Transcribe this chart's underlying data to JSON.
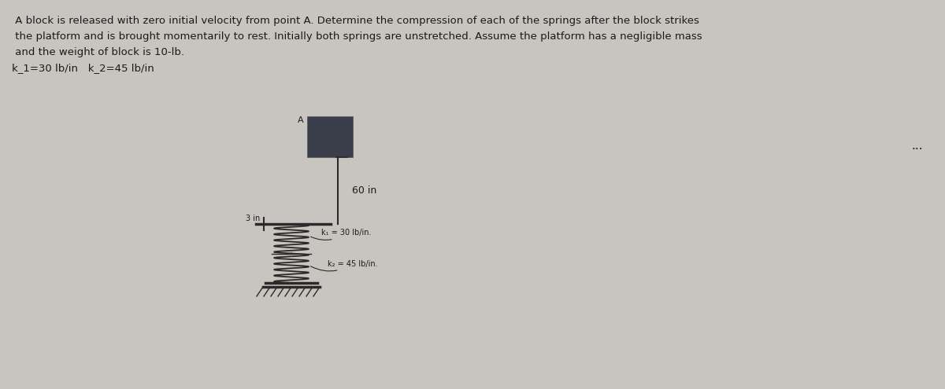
{
  "background_color": "#c8c4c0",
  "text_color": "#1a1a1a",
  "title_line1": " A block is released with zero initial velocity from point A. Determine the compression of each of the springs after the block strikes",
  "title_line2": " the platform and is brought momentarily to rest. Initially both springs are unstretched. Assume the platform has a negligible mass",
  "title_line3": " and the weight of block is 10-lb.",
  "subtitle_text": "k_1=30 lb/in   k_2=45 lb/in",
  "dots_text": "...",
  "block_label": "A",
  "distance_label": "60 in",
  "platform_label": "3 in",
  "spring1_label": "k₁ = 30 lb/in.",
  "spring2_label": "k₂ = 45 lb/in.",
  "block_color": "#3a3d4a",
  "line_color": "#2a2a2a",
  "spring_color": "#2a2a2a"
}
